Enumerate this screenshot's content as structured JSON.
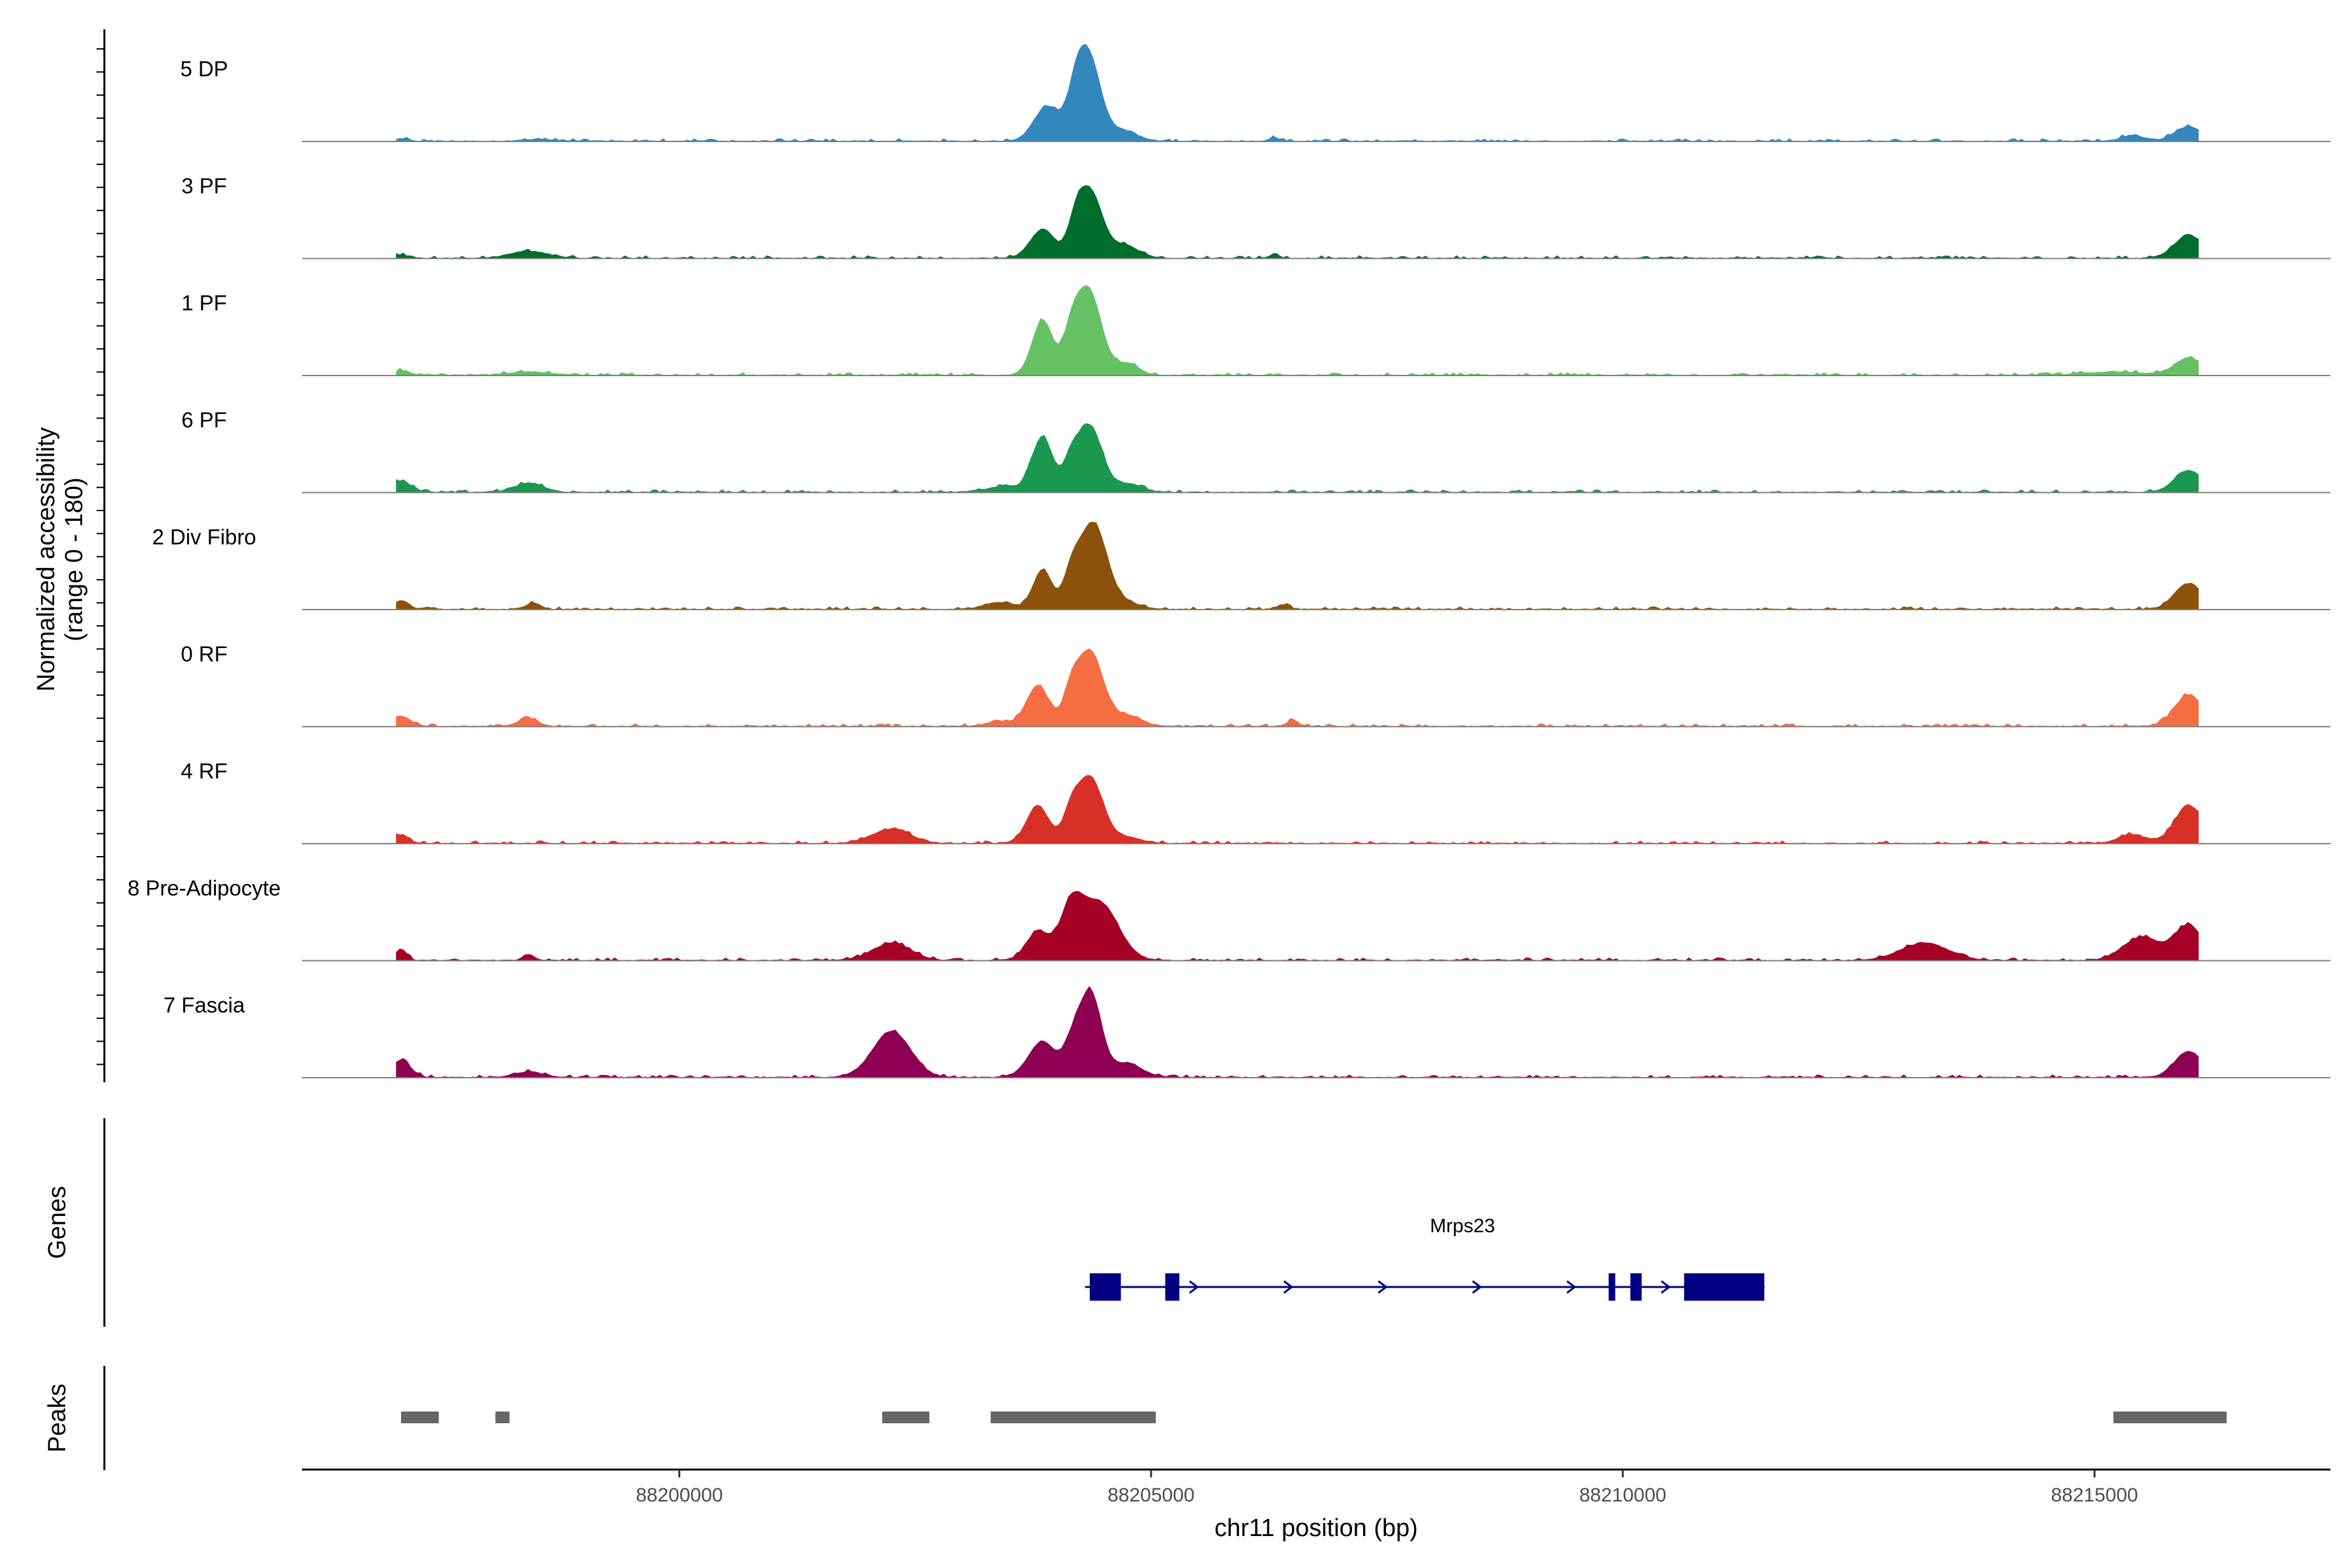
{
  "chart_data": {
    "type": "area",
    "title": "",
    "region": {
      "chrom": "chr11",
      "start": 88196000,
      "end": 88217500
    },
    "xlabel": "chr11 position (bp)",
    "xticks": [
      88200000,
      88205000,
      88210000,
      88215000
    ],
    "ylabel_line1": "Normalized accessibility",
    "ylabel_line2": "(range 0 - 180)",
    "ylim": [
      0,
      180
    ],
    "coverage_start": 88197000,
    "coverage_end": 88216100,
    "series": [
      {
        "name": "5 DP",
        "color": "#3288BD",
        "peaks": [
          [
            88197050,
            4,
            80
          ],
          [
            88198500,
            3,
            150
          ],
          [
            88203900,
            60,
            140
          ],
          [
            88204200,
            42,
            80
          ],
          [
            88204330,
            150,
            130
          ],
          [
            88204700,
            18,
            150
          ],
          [
            88206300,
            5,
            60
          ],
          [
            88215400,
            10,
            120
          ],
          [
            88216000,
            25,
            150
          ]
        ]
      },
      {
        "name": "3 PF",
        "color": "#006D2C",
        "peaks": [
          [
            88197050,
            5,
            80
          ],
          [
            88198400,
            12,
            200
          ],
          [
            88203850,
            50,
            130
          ],
          [
            88204200,
            40,
            80
          ],
          [
            88204350,
            115,
            130
          ],
          [
            88204720,
            22,
            150
          ],
          [
            88206300,
            5,
            60
          ],
          [
            88216000,
            40,
            150
          ]
        ]
      },
      {
        "name": "1 PF",
        "color": "#66C164",
        "peaks": [
          [
            88197050,
            8,
            80
          ],
          [
            88198400,
            6,
            200
          ],
          [
            88203850,
            95,
            110
          ],
          [
            88204150,
            45,
            80
          ],
          [
            88204330,
            150,
            140
          ],
          [
            88204750,
            20,
            120
          ],
          [
            88215200,
            6,
            300
          ],
          [
            88216000,
            30,
            150
          ]
        ]
      },
      {
        "name": "6 PF",
        "color": "#1A9850",
        "peaks": [
          [
            88197050,
            20,
            100
          ],
          [
            88198400,
            16,
            150
          ],
          [
            88203450,
            10,
            200
          ],
          [
            88203850,
            95,
            110
          ],
          [
            88204150,
            45,
            80
          ],
          [
            88204350,
            115,
            130
          ],
          [
            88204750,
            15,
            150
          ],
          [
            88216000,
            38,
            150
          ]
        ]
      },
      {
        "name": "2 Div Fibro",
        "color": "#8C510A",
        "peaks": [
          [
            88197050,
            15,
            80
          ],
          [
            88198450,
            10,
            80
          ],
          [
            88203400,
            12,
            150
          ],
          [
            88203850,
            68,
            100
          ],
          [
            88204150,
            45,
            80
          ],
          [
            88204380,
            150,
            150
          ],
          [
            88204750,
            10,
            150
          ],
          [
            88206400,
            8,
            60
          ],
          [
            88216000,
            45,
            150
          ]
        ]
      },
      {
        "name": "0 RF",
        "color": "#F46D43",
        "peaks": [
          [
            88197050,
            18,
            100
          ],
          [
            88198400,
            14,
            100
          ],
          [
            88203400,
            8,
            150
          ],
          [
            88203800,
            70,
            120
          ],
          [
            88204150,
            45,
            80
          ],
          [
            88204350,
            130,
            140
          ],
          [
            88204750,
            18,
            150
          ],
          [
            88206500,
            10,
            60
          ],
          [
            88216000,
            55,
            150
          ]
        ]
      },
      {
        "name": "4 RF",
        "color": "#D73027",
        "peaks": [
          [
            88197050,
            15,
            80
          ],
          [
            88202250,
            25,
            200
          ],
          [
            88203800,
            65,
            120
          ],
          [
            88204150,
            40,
            80
          ],
          [
            88204350,
            115,
            140
          ],
          [
            88204750,
            10,
            150
          ],
          [
            88215400,
            15,
            150
          ],
          [
            88216000,
            65,
            150
          ]
        ]
      },
      {
        "name": "8 Pre-Adipocyte",
        "color": "#A50026",
        "peaks": [
          [
            88197050,
            20,
            60
          ],
          [
            88198400,
            10,
            60
          ],
          [
            88202250,
            30,
            200
          ],
          [
            88203800,
            50,
            120
          ],
          [
            88204150,
            80,
            120
          ],
          [
            88204450,
            100,
            200
          ],
          [
            88213200,
            30,
            250
          ],
          [
            88215500,
            40,
            200
          ],
          [
            88216000,
            60,
            150
          ]
        ]
      },
      {
        "name": "7 Fascia",
        "color": "#8E0152",
        "peaks": [
          [
            88197050,
            30,
            100
          ],
          [
            88198400,
            10,
            150
          ],
          [
            88202250,
            80,
            200
          ],
          [
            88203850,
            62,
            150
          ],
          [
            88204150,
            40,
            80
          ],
          [
            88204350,
            150,
            120
          ],
          [
            88204750,
            25,
            150
          ],
          [
            88216000,
            45,
            150
          ]
        ]
      }
    ],
    "genes_title": "Genes",
    "gene": {
      "name": "Mrps23",
      "start": 88204300,
      "end": 88211500,
      "strand": "+",
      "exons": [
        [
          88204350,
          88204680
        ],
        [
          88205150,
          88205300
        ],
        [
          88209850,
          88209920
        ],
        [
          88210080,
          88210200
        ],
        [
          88210650,
          88211500
        ]
      ],
      "color": "#000080"
    },
    "peaks_title": "Peaks",
    "peak_regions": [
      [
        88197050,
        88197450
      ],
      [
        88198050,
        88198200
      ],
      [
        88202150,
        88202650
      ],
      [
        88203300,
        88205050
      ],
      [
        88215200,
        88216400
      ]
    ],
    "peak_color": "#666666"
  }
}
